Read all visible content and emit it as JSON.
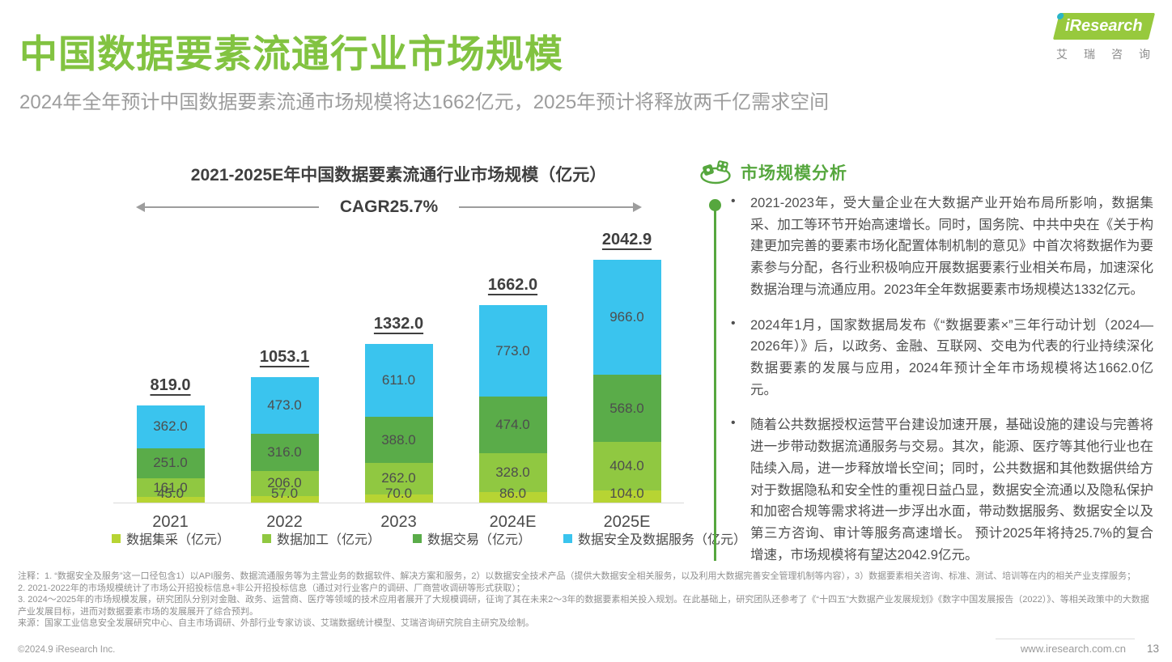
{
  "page": {
    "title": "中国数据要素流通行业市场规模",
    "subtitle": "2024年全年预计中国数据要素流通市场规模将达1662亿元，2025年预计将释放两千亿需求空间"
  },
  "logo": {
    "brand": "iResearch",
    "brand_cn": "艾瑞咨询"
  },
  "chart_data": {
    "type": "bar",
    "stacked": true,
    "title": "2021-2025E年中国数据要素流通行业市场规模（亿元）",
    "cagr_label": "CAGR25.7%",
    "xlabel": "",
    "ylabel": "",
    "ylim": [
      0,
      2100
    ],
    "grid": false,
    "legend_position": "bottom",
    "categories": [
      "2021",
      "2022",
      "2023",
      "2024E",
      "2025E"
    ],
    "series": [
      {
        "name": "数据集采（亿元）",
        "color": "#b7d433",
        "values": [
          45.0,
          57.0,
          70.0,
          86.0,
          104.0
        ]
      },
      {
        "name": "数据加工（亿元）",
        "color": "#90c841",
        "values": [
          161.0,
          206.0,
          262.0,
          328.0,
          404.0
        ]
      },
      {
        "name": "数据交易（亿元）",
        "color": "#5aac49",
        "values": [
          251.0,
          316.0,
          388.0,
          474.0,
          568.0
        ]
      },
      {
        "name": "数据安全及数据服务（亿元）",
        "color": "#3ac4ee",
        "values": [
          362.0,
          473.0,
          611.0,
          773.0,
          966.0
        ]
      }
    ],
    "totals": [
      819.0,
      1053.1,
      1332.0,
      1662.0,
      2042.9
    ]
  },
  "analysis": {
    "heading": "市场规模分析",
    "bullets": [
      "2021-2023年，受大量企业在大数据产业开始布局所影响，数据集采、加工等环节开始高速增长。同时，国务院、中共中央在《关于构建更加完善的要素市场化配置体制机制的意见》中首次将数据作为要素参与分配，各行业积极响应开展数据要素行业相关布局，加速深化数据治理与流通应用。2023年全年数据要素市场规模达1332亿元。",
      "2024年1月，国家数据局发布《“数据要素×”三年行动计划（2024—2026年）》后，以政务、金融、互联网、交电为代表的行业持续深化数据要素的发展与应用，2024年预计全年市场规模将达1662.0亿元。",
      "随着公共数据授权运营平台建设加速开展，基础设施的建设与完善将进一步带动数据流通服务与交易。其次，能源、医疗等其他行业也在陆续入局，进一步释放增长空间；同时，公共数据和其他数据供给方对于数据隐私和安全性的重视日益凸显，数据安全流通以及隐私保护和加密合规等需求将进一步浮出水面，带动数据服务、数据安全以及第三方咨询、审计等服务高速增长。 预计2025年将持25.7%的复合增速，市场规模将有望达2042.9亿元。"
    ]
  },
  "footnotes": {
    "lines": [
      "注释：1. “数据安全及服务”这一口径包含1）以API服务、数据流通服务等为主营业务的数据软件、解决方案和服务，2）以数据安全技术产品（提供大数据安全相关服务，以及利用大数据完善安全管理机制等内容），3）数据要素相关咨询、标准、测试、培训等在内的相关产业支撑服务；",
      "2. 2021-2022年的市场规模统计了市场公开招投标信息+非公开招投标信息（通过对行业客户的调研、厂商营收调研等形式获取）；",
      "3. 2024～2025年的市场规模发展，研究团队分别对金融、政务、运营商、医疗等领域的技术应用者展开了大规模调研，征询了其在未来2～3年的数据要素相关投入规划。在此基础上，研究团队还参考了《“十四五”大数据产业发展规划》《数字中国发展报告（2022）》、等相关政策中的大数据产业发展目标，进而对数据要素市场的发展展开了综合预判。",
      "来源：国家工业信息安全发展研究中心、自主市场调研、外部行业专家访谈、艾瑞数据统计模型、艾瑞咨询研究院自主研究及绘制。"
    ]
  },
  "footer": {
    "copyright": "©2024.9 iResearch Inc.",
    "website": "www.iresearch.com.cn",
    "page_number": "13"
  }
}
